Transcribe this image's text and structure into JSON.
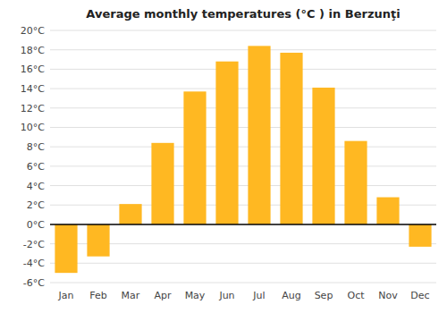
{
  "chart_data": {
    "type": "bar",
    "title": "Average monthly temperatures (°C ) in Berzunţi",
    "categories": [
      "Jan",
      "Feb",
      "Mar",
      "Apr",
      "May",
      "Jun",
      "Jul",
      "Aug",
      "Sep",
      "Oct",
      "Nov",
      "Dec"
    ],
    "values": [
      -5.0,
      -3.3,
      2.1,
      8.4,
      13.7,
      16.8,
      18.4,
      17.7,
      14.1,
      8.6,
      2.8,
      -2.3
    ],
    "color": "#FFB822",
    "ylim": [
      -6,
      20
    ],
    "yticks": [
      {
        "value": -6,
        "label": "-6°C"
      },
      {
        "value": -4,
        "label": "-4°C"
      },
      {
        "value": -2,
        "label": "-2°C"
      },
      {
        "value": 0,
        "label": "0°C"
      },
      {
        "value": 2,
        "label": "2°C"
      },
      {
        "value": 4,
        "label": "4°C"
      },
      {
        "value": 6,
        "label": "6°C"
      },
      {
        "value": 8,
        "label": "8°C"
      },
      {
        "value": 10,
        "label": "10°C"
      },
      {
        "value": 12,
        "label": "12°C"
      },
      {
        "value": 14,
        "label": "14°C"
      },
      {
        "value": 16,
        "label": "16°C"
      },
      {
        "value": 18,
        "label": "18°C"
      },
      {
        "value": 20,
        "label": "20°C"
      }
    ],
    "grid": true
  }
}
